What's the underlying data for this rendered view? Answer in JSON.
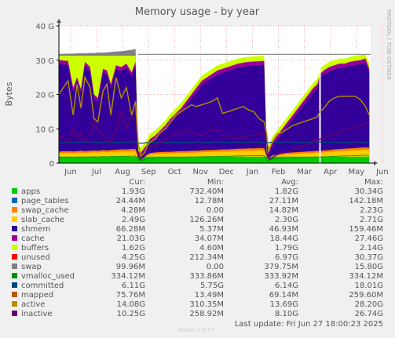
{
  "chart_data": {
    "type": "area",
    "title": "Memory usage - by year",
    "ylabel": "Bytes",
    "ylim": [
      0,
      40
    ],
    "yticks": [
      "0",
      "10 G",
      "20 G",
      "30 G",
      "40 G"
    ],
    "months": [
      "Jun",
      "Jul",
      "Aug",
      "Sep",
      "Oct",
      "Nov",
      "Dec",
      "Jan",
      "Feb",
      "Mar",
      "Apr",
      "May",
      "Jun"
    ],
    "total_memory_line": 31.7,
    "headers": [
      "Cur:",
      "Min:",
      "Avg:",
      "Max:"
    ],
    "legend": [
      {
        "name": "apps",
        "color": "#00cc00",
        "cur": "1.93G",
        "min": "732.40M",
        "avg": "1.82G",
        "max": "30.34G"
      },
      {
        "name": "page_tables",
        "color": "#0066b3",
        "cur": "24.44M",
        "min": "12.78M",
        "avg": "27.11M",
        "max": "142.18M"
      },
      {
        "name": "swap_cache",
        "color": "#ff8000",
        "cur": "4.28M",
        "min": "0.00",
        "avg": "14.82M",
        "max": "2.23G"
      },
      {
        "name": "slab_cache",
        "color": "#ffcc00",
        "cur": "2.49G",
        "min": "126.26M",
        "avg": "2.30G",
        "max": "2.71G"
      },
      {
        "name": "shmem",
        "color": "#330099",
        "cur": "66.28M",
        "min": "5.37M",
        "avg": "46.93M",
        "max": "159.46M"
      },
      {
        "name": "cache",
        "color": "#990099",
        "cur": "21.03G",
        "min": "34.07M",
        "avg": "18.44G",
        "max": "27.46G"
      },
      {
        "name": "buffers",
        "color": "#ccff00",
        "cur": "1.62G",
        "min": "4.60M",
        "avg": "1.79G",
        "max": "2.14G"
      },
      {
        "name": "unused",
        "color": "#ff0000",
        "cur": "4.25G",
        "min": "212.34M",
        "avg": "6.97G",
        "max": "30.37G"
      },
      {
        "name": "swap",
        "color": "#808080",
        "cur": "99.96M",
        "min": "0.00",
        "avg": "379.75M",
        "max": "15.80G"
      },
      {
        "name": "vmalloc_used",
        "color": "#008f00",
        "cur": "334.12M",
        "min": "333.86M",
        "avg": "333.92M",
        "max": "334.12M"
      },
      {
        "name": "committed",
        "color": "#00487d",
        "cur": "6.11G",
        "min": "5.75G",
        "avg": "6.14G",
        "max": "18.01G"
      },
      {
        "name": "mapped",
        "color": "#b35a00",
        "cur": "75.76M",
        "min": "13.49M",
        "avg": "69.14M",
        "max": "259.60M"
      },
      {
        "name": "active",
        "color": "#b38f00",
        "cur": "14.08G",
        "min": "310.35M",
        "avg": "13.69G",
        "max": "28.20G"
      },
      {
        "name": "inactive",
        "color": "#6b006b",
        "cur": "10.25G",
        "min": "258.92M",
        "avg": "8.10G",
        "max": "26.74G"
      }
    ],
    "series": {
      "x": [
        0,
        0.35,
        0.55,
        0.7,
        0.85,
        1.0,
        1.2,
        1.35,
        1.5,
        1.7,
        1.85,
        2.0,
        2.2,
        2.4,
        2.6,
        2.8,
        2.95,
        3.05,
        3.15,
        3.3,
        3.4,
        3.5,
        3.7,
        3.9,
        4.1,
        4.3,
        4.5,
        4.7,
        4.9,
        5.1,
        5.3,
        5.5,
        5.7,
        5.9,
        6.1,
        6.3,
        6.5,
        6.7,
        6.9,
        7.1,
        7.3,
        7.5,
        7.7,
        7.9,
        8.0,
        8.05,
        8.1,
        8.2,
        8.4,
        8.6,
        8.8,
        9.0,
        9.2,
        9.4,
        9.6,
        9.8,
        9.95,
        10.05,
        10.2,
        10.4,
        10.6,
        10.8,
        11.0,
        11.2,
        11.4,
        11.6,
        11.8,
        11.95
      ],
      "base": [
        3.4,
        3.5,
        3.4,
        3.5,
        3.6,
        3.5,
        3.6,
        3.7,
        3.6,
        3.8,
        3.7,
        3.8,
        3.9,
        4.0,
        4.0,
        4.1,
        4.1,
        2.0,
        1.5,
        2.0,
        2.5,
        2.9,
        3.1,
        3.2,
        3.3,
        3.3,
        3.4,
        3.5,
        3.5,
        3.6,
        3.6,
        3.7,
        3.8,
        3.8,
        3.9,
        4.0,
        4.0,
        4.1,
        4.2,
        4.2,
        4.3,
        4.3,
        4.4,
        4.4,
        2.0,
        1.2,
        1.6,
        2.2,
        2.6,
        2.8,
        3.0,
        3.1,
        3.2,
        3.3,
        3.4,
        3.5,
        3.6,
        3.5,
        3.7,
        3.8,
        4.0,
        4.1,
        4.2,
        4.3,
        4.4,
        4.5,
        4.6,
        4.5
      ],
      "cache_top": [
        30.0,
        29.8,
        22.0,
        25.0,
        21.5,
        29.5,
        28.0,
        20.0,
        19.0,
        27.5,
        27.0,
        23.0,
        28.5,
        28.0,
        29.0,
        26.5,
        29.5,
        3.5,
        3.0,
        4.5,
        5.5,
        7.0,
        8.0,
        9.5,
        11.0,
        13.0,
        14.5,
        16.0,
        18.0,
        20.0,
        22.0,
        24.0,
        25.0,
        26.0,
        27.0,
        27.5,
        28.0,
        28.5,
        29.0,
        29.3,
        29.5,
        29.6,
        29.7,
        29.8,
        3.0,
        2.5,
        4.0,
        6.0,
        8.0,
        10.0,
        12.0,
        14.0,
        16.0,
        18.0,
        20.0,
        22.0,
        23.0,
        26.0,
        27.0,
        28.0,
        28.5,
        29.0,
        29.0,
        29.5,
        29.8,
        30.0,
        30.5,
        27.5
      ],
      "buffers_top": [
        31.3,
        31.3,
        31.3,
        31.3,
        31.3,
        31.3,
        31.3,
        31.3,
        31.3,
        31.3,
        31.3,
        31.3,
        31.3,
        31.3,
        31.3,
        31.3,
        31.3,
        5.0,
        4.5,
        6.0,
        7.0,
        8.5,
        9.5,
        11.0,
        12.5,
        14.5,
        16.0,
        17.5,
        19.5,
        21.5,
        23.5,
        25.5,
        26.5,
        27.5,
        28.5,
        29.0,
        29.5,
        30.0,
        30.5,
        30.8,
        31.0,
        31.1,
        31.2,
        31.3,
        4.5,
        4.0,
        5.5,
        7.5,
        9.5,
        11.5,
        13.5,
        15.5,
        17.5,
        19.5,
        21.5,
        23.5,
        24.5,
        27.5,
        28.5,
        29.5,
        30.0,
        30.5,
        30.5,
        31.0,
        31.3,
        31.5,
        31.7,
        29.0
      ],
      "swap": [
        31.8,
        31.9,
        31.9,
        32.0,
        32.0,
        32.0,
        32.1,
        32.1,
        32.2,
        32.2,
        32.3,
        32.4,
        32.5,
        32.6,
        32.8,
        33.0,
        33.3,
        0.0,
        0.0,
        0.0,
        0.0,
        0.0,
        0.0,
        0.0,
        0.0,
        0.0,
        0.0,
        0.0,
        0.0,
        0.0,
        0.0,
        0.0,
        0.0,
        0.0,
        0.0,
        0.0,
        0.0,
        0.0,
        0.0,
        0.0,
        0.0,
        0.0,
        0.0,
        0.0,
        0.0,
        0.0,
        0.0,
        0.0,
        0.0,
        0.0,
        0.0,
        0.0,
        0.0,
        0.0,
        0.0,
        0.0,
        0.0,
        0.0,
        0.0,
        0.0,
        0.0,
        0.0,
        0.0,
        0.0,
        0.0,
        0.0,
        0.0,
        0.0
      ],
      "active": [
        20.0,
        24.0,
        14.0,
        23.0,
        16.0,
        25.0,
        22.0,
        13.0,
        12.0,
        21.0,
        23.0,
        14.0,
        25.0,
        19.0,
        22.0,
        14.0,
        18.0,
        6.0,
        2.0,
        3.0,
        5.0,
        6.0,
        7.0,
        9.0,
        10.0,
        12.0,
        14.0,
        15.0,
        16.0,
        17.0,
        16.5,
        17.0,
        17.5,
        18.0,
        19.0,
        14.5,
        15.0,
        15.5,
        16.0,
        16.5,
        15.5,
        15.0,
        13.0,
        12.0,
        8.5,
        5.0,
        4.0,
        6.0,
        8.5,
        9.0,
        10.0,
        11.0,
        11.5,
        12.0,
        12.5,
        13.0,
        13.5,
        15.0,
        16.0,
        18.0,
        19.0,
        19.5,
        19.5,
        19.5,
        19.5,
        18.5,
        16.5,
        14.0
      ],
      "inactive": [
        8.0,
        6.0,
        10.0,
        7.0,
        9.0,
        6.5,
        8.0,
        12.0,
        10.0,
        8.0,
        7.0,
        6.5,
        10.0,
        15.0,
        10.0,
        14.0,
        16.0,
        2.0,
        1.0,
        2.0,
        3.0,
        4.5,
        5.0,
        6.0,
        7.0,
        8.0,
        8.5,
        9.0,
        9.5,
        9.0,
        8.5,
        8.0,
        9.0,
        10.0,
        9.5,
        8.0,
        8.0,
        7.5,
        7.0,
        7.5,
        8.0,
        8.0,
        8.5,
        9.0,
        8.0,
        2.0,
        1.0,
        1.5,
        2.5,
        3.0,
        3.5,
        4.0,
        4.5,
        5.0,
        5.5,
        6.0,
        6.5,
        7.0,
        7.5,
        8.0,
        8.5,
        9.0,
        9.5,
        10.0,
        10.5,
        11.0,
        11.5,
        12.5
      ],
      "committed": [
        6.0,
        6.0,
        6.1,
        6.1,
        6.2,
        6.1,
        6.2,
        6.1,
        6.0,
        6.1,
        6.2,
        6.1,
        6.0,
        6.1,
        6.1,
        6.2,
        6.1,
        6.0,
        5.8,
        5.9,
        6.0,
        6.0,
        6.1,
        6.0,
        6.0,
        6.1,
        6.0,
        6.1,
        6.1,
        6.0,
        6.2,
        6.1,
        6.0,
        6.1,
        6.2,
        6.1,
        6.0,
        6.1,
        6.1,
        6.0,
        6.1,
        6.2,
        6.1,
        6.0,
        6.1,
        5.9,
        6.0,
        6.1,
        6.0,
        6.1,
        6.2,
        6.1,
        6.0,
        6.1,
        6.1,
        6.0,
        6.1,
        6.2,
        6.1,
        6.0,
        6.1,
        6.1,
        6.0,
        6.1,
        6.2,
        6.1,
        6.0,
        6.1
      ]
    }
  },
  "footer": {
    "last_update": "Last update: Fri Jun 27 18:00:23 2025",
    "version": "Munin 2.0.57"
  },
  "watermark": "RRDTOOL / TOBI OETIKER"
}
